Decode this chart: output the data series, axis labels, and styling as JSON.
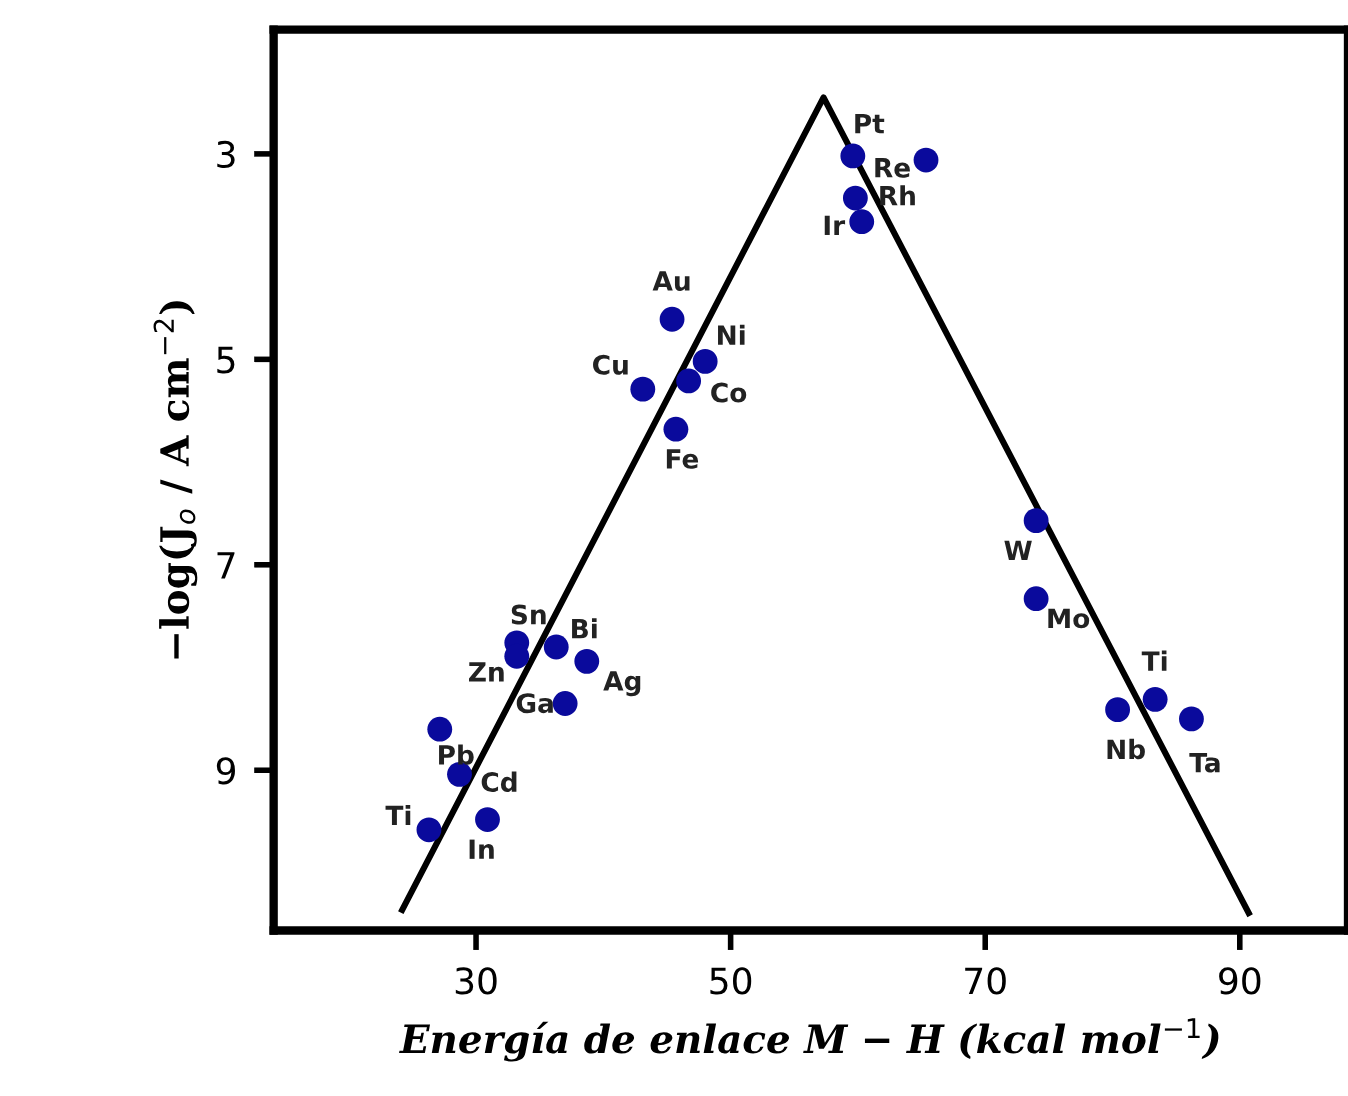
{
  "chart_data": {
    "type": "scatter",
    "xlabel": "Energía de enlace M − H (kcal mol$^{−1}$)",
    "ylabel": "−log(J$_{o}$ / A cm$^{−2}$)",
    "xlim": [
      14.1,
      98.5
    ],
    "ylim": [
      10.56,
      1.79
    ],
    "xticks": [
      30,
      50,
      70,
      90
    ],
    "yticks": [
      3,
      5,
      7,
      9
    ],
    "grid": false,
    "legend": false,
    "marker": "circle",
    "series": [
      {
        "color": "#0a0a9c",
        "x": [
          59.6,
          65.35,
          59.8,
          60.3,
          45.4,
          48.0,
          46.7,
          43.1,
          45.7,
          74.0,
          74.0,
          83.35,
          80.4,
          86.2,
          33.2,
          33.2,
          36.3,
          38.7,
          37.0,
          27.15,
          28.7,
          26.3,
          30.9
        ],
        "values": [
          3.02,
          3.06,
          3.43,
          3.66,
          4.61,
          5.02,
          5.21,
          5.29,
          5.68,
          6.57,
          7.33,
          8.31,
          8.41,
          8.5,
          7.76,
          7.89,
          7.8,
          7.94,
          8.35,
          8.6,
          9.04,
          9.58,
          9.48
        ]
      },
      {
        "type": "line",
        "color": "#000000",
        "marker": "none",
        "line_style": "solid",
        "x": [
          24.2,
          57.3,
          90.7
        ],
        "values": [
          10.36,
          2.45,
          10.39
        ]
      }
    ],
    "annotations": [
      {
        "text": "Pt",
        "x": 59.6,
        "y": 3.02
      },
      {
        "text": "Re",
        "x": 65.35,
        "y": 3.06
      },
      {
        "text": "Rh",
        "x": 59.8,
        "y": 3.43
      },
      {
        "text": "Ir",
        "x": 60.3,
        "y": 3.66
      },
      {
        "text": "Au",
        "x": 45.4,
        "y": 4.61
      },
      {
        "text": "Ni",
        "x": 48.0,
        "y": 5.02
      },
      {
        "text": "Co",
        "x": 46.7,
        "y": 5.21
      },
      {
        "text": "Cu",
        "x": 43.1,
        "y": 5.29
      },
      {
        "text": "Fe",
        "x": 45.7,
        "y": 5.68
      },
      {
        "text": "W",
        "x": 74.0,
        "y": 6.57
      },
      {
        "text": "Mo",
        "x": 74.0,
        "y": 7.33
      },
      {
        "text": "Ti",
        "x": 83.35,
        "y": 8.31
      },
      {
        "text": "Nb",
        "x": 80.4,
        "y": 8.41
      },
      {
        "text": "Ta",
        "x": 86.2,
        "y": 8.5
      },
      {
        "text": "Sn",
        "x": 33.2,
        "y": 7.76
      },
      {
        "text": "Zn",
        "x": 33.2,
        "y": 7.89
      },
      {
        "text": "Bi",
        "x": 36.3,
        "y": 7.8
      },
      {
        "text": "Ag",
        "x": 38.7,
        "y": 7.94
      },
      {
        "text": "Ga",
        "x": 37.0,
        "y": 8.35
      },
      {
        "text": "Pb",
        "x": 27.15,
        "y": 8.6
      },
      {
        "text": "Cd",
        "x": 28.7,
        "y": 9.04
      },
      {
        "text": "Ti",
        "x": 26.3,
        "y": 9.58
      },
      {
        "text": "In",
        "x": 30.9,
        "y": 9.48
      }
    ]
  }
}
